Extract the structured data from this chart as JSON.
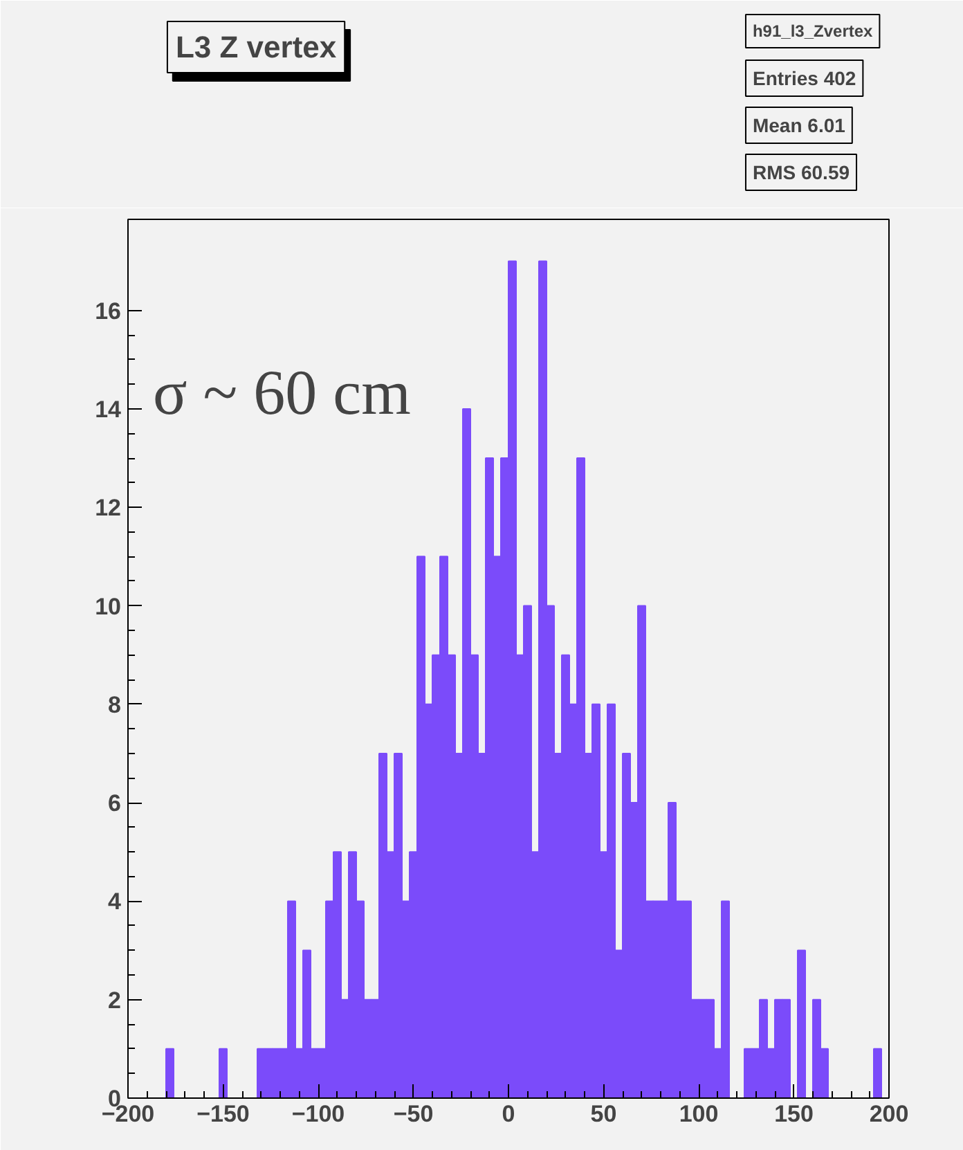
{
  "chart_data": {
    "type": "histogram",
    "title": "L3 Z vertex",
    "bins": [
      -200,
      -196,
      -192,
      -188,
      -184,
      -180,
      -176,
      -172,
      -168,
      -164,
      -160,
      -156,
      -152,
      -148,
      -144,
      -140,
      -136,
      -132,
      -128,
      -124,
      -120,
      -116,
      -112,
      -108,
      -104,
      -100,
      -96,
      -92,
      -88,
      -84,
      -80,
      -76,
      -72,
      -68,
      -64,
      -60,
      -56,
      -52,
      -48,
      -44,
      -40,
      -36,
      -32,
      -28,
      -24,
      -20,
      -16,
      -12,
      -8,
      -4,
      0,
      4,
      8,
      12,
      16,
      20,
      24,
      28,
      32,
      36,
      40,
      44,
      48,
      52,
      56,
      60,
      64,
      68,
      72,
      76,
      80,
      84,
      88,
      92,
      96,
      100,
      104,
      108,
      112,
      116,
      120,
      124,
      128,
      132,
      136,
      140,
      144,
      148,
      152,
      156,
      160,
      164,
      168,
      172,
      176,
      180,
      184,
      188,
      192,
      196,
      200
    ],
    "values": [
      0,
      0,
      0,
      0,
      0,
      1,
      0,
      0,
      0,
      0,
      0,
      0,
      1,
      0,
      0,
      0,
      0,
      1,
      1,
      1,
      1,
      4,
      1,
      3,
      1,
      1,
      4,
      5,
      2,
      5,
      4,
      2,
      2,
      7,
      5,
      7,
      4,
      5,
      11,
      8,
      9,
      11,
      9,
      7,
      14,
      9,
      7,
      13,
      11,
      13,
      17,
      9,
      10,
      5,
      17,
      10,
      7,
      9,
      8,
      13,
      7,
      8,
      5,
      8,
      3,
      7,
      6,
      10,
      4,
      4,
      4,
      6,
      4,
      4,
      2,
      2,
      2,
      1,
      4,
      0,
      0,
      1,
      1,
      2,
      1,
      2,
      2,
      0,
      3,
      0,
      2,
      1,
      0,
      0,
      0,
      0,
      0,
      0,
      1,
      0
    ],
    "color": "#7b4bfa",
    "xlim": [
      -200,
      200
    ],
    "xticks": [
      -200,
      -150,
      -100,
      -50,
      0,
      50,
      100,
      150,
      200
    ],
    "ylim": [
      0,
      17.85
    ],
    "yticks": [
      0,
      2,
      4,
      6,
      8,
      10,
      12,
      14,
      16
    ],
    "grid": false,
    "annotations": [
      "σ ~ 60 cm",
      "h91_l3_Zvertex",
      "Entries 402",
      "Mean 6.01",
      "RMS 60.59"
    ]
  }
}
